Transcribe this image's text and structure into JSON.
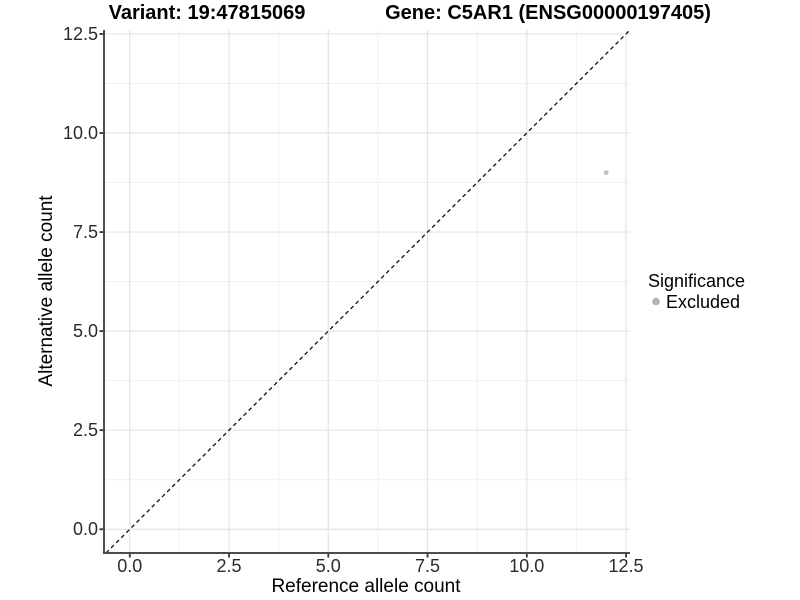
{
  "chart_data": {
    "type": "scatter",
    "title_left": "Variant: 19:47815069",
    "title_right": "Gene: C5AR1 (ENSG00000197405)",
    "xlabel": "Reference allele count",
    "ylabel": "Alternative allele count",
    "xlim": [
      -0.65,
      12.6
    ],
    "ylim": [
      -0.6,
      12.6
    ],
    "x_ticks": [
      0.0,
      2.5,
      5.0,
      7.5,
      10.0,
      12.5
    ],
    "x_tick_labels": [
      "0.0",
      "2.5",
      "5.0",
      "7.5",
      "10.0",
      "12.5"
    ],
    "y_ticks": [
      0.0,
      2.5,
      5.0,
      7.5,
      10.0,
      12.5
    ],
    "y_tick_labels": [
      "0.0",
      "2.5",
      "5.0",
      "7.5",
      "10.0",
      "12.5"
    ],
    "x_minor_ticks": [
      1.25,
      3.75,
      6.25,
      8.75,
      11.25
    ],
    "y_minor_ticks": [
      1.25,
      3.75,
      6.25,
      8.75,
      11.25
    ],
    "grid": true,
    "reference_line": {
      "kind": "identity",
      "slope": 1,
      "intercept": 0,
      "style": "dashed",
      "color": "#111111"
    },
    "series": [
      {
        "name": "Excluded",
        "color": "#bdbdbd",
        "points": [
          {
            "x": 12,
            "y": 9
          }
        ]
      }
    ],
    "legend": {
      "title": "Significance",
      "position": "right",
      "items": [
        {
          "label": "Excluded",
          "color": "#b3b3b3"
        }
      ]
    },
    "colors": {
      "background": "#ffffff",
      "axis_line": "#4d4d4d",
      "tick_mark": "#333333",
      "grid_major": "#e3e3e3",
      "grid_minor": "#f1f1f1",
      "point": "#c0c0c0"
    }
  }
}
